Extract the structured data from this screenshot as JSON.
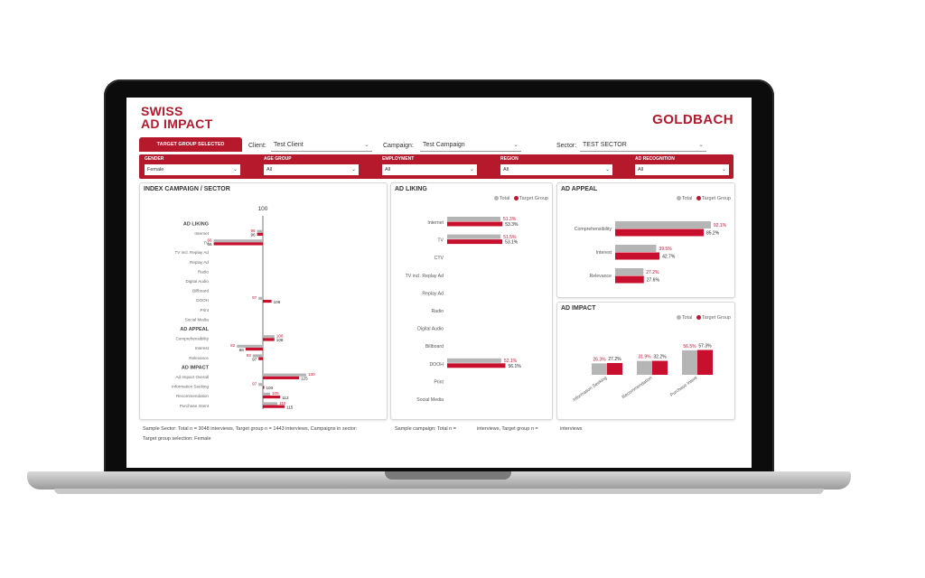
{
  "header": {
    "title_line1": "SWISS",
    "title_line2": "AD IMPACT",
    "brand": "GOLDBACH",
    "tab": "TARGET GROUP SELECTED"
  },
  "filters": {
    "client_label": "Client:",
    "client_value": "Test Client",
    "campaign_label": "Campaign:",
    "campaign_value": "Test Campaign",
    "sector_label": "Sector:",
    "sector_value": "TEST SECTOR"
  },
  "filterbar": [
    {
      "label": "GENDER",
      "value": "Female"
    },
    {
      "label": "AGE GROUP",
      "value": "All"
    },
    {
      "label": "EMPLOYMENT",
      "value": "All"
    },
    {
      "label": "REGION",
      "value": "All"
    },
    {
      "label": "AD RECOGNITION",
      "value": "All"
    }
  ],
  "colors": {
    "accent": "#b5192b",
    "total": "#b5b5b5",
    "target": "#c8102e"
  },
  "icons": [
    "chevron-down-icon"
  ],
  "legend": {
    "total": "Total",
    "target": "Target Group"
  },
  "index_card": {
    "title": "INDEX CAMPAIGN / SECTOR",
    "baseline_label": "100",
    "rows": [
      {
        "label": "AD LIKING",
        "header": true
      },
      {
        "label": "Internet",
        "total": 96,
        "target": 96
      },
      {
        "label": "TV",
        "total": 66,
        "target": 66
      },
      {
        "label": "TV incl. Replay Ad"
      },
      {
        "label": "Replay Ad"
      },
      {
        "label": "Radio"
      },
      {
        "label": "Digital Audio"
      },
      {
        "label": "Billboard"
      },
      {
        "label": "DOOH",
        "total": 97,
        "target": 106
      },
      {
        "label": "Print"
      },
      {
        "label": "Social Media"
      },
      {
        "label": "AD APPEAL",
        "header": true
      },
      {
        "label": "Comprehensibility",
        "total": 108,
        "target": 108
      },
      {
        "label": "Interest",
        "total": 82,
        "target": 88
      },
      {
        "label": "Relevance",
        "total": 93,
        "target": 97
      },
      {
        "label": "AD IMPACT",
        "header": true
      },
      {
        "label": "Ad Impact Overall",
        "total": 130,
        "target": 125
      },
      {
        "label": "Information Seeking",
        "total": 97,
        "target": 100
      },
      {
        "label": "Recommendation",
        "total": 105,
        "target": 112
      },
      {
        "label": "Purchase Intent",
        "total": 110,
        "target": 115
      }
    ]
  },
  "chart_data": [
    {
      "type": "bar",
      "title": "AD LIKING",
      "categories": [
        "Internet",
        "TV",
        "CTV",
        "TV incl. Replay Ad",
        "Replay Ad",
        "Radio",
        "Digital Audio",
        "Billboard",
        "DOOH",
        "Print",
        "Social Media"
      ],
      "series": [
        {
          "name": "Total",
          "values": [
            51.3,
            51.5,
            null,
            null,
            null,
            null,
            null,
            null,
            52.1,
            null,
            null
          ]
        },
        {
          "name": "Target Group",
          "values": [
            53.3,
            53.1,
            null,
            null,
            null,
            null,
            null,
            null,
            56.1,
            null,
            null
          ]
        }
      ],
      "value_labels": {
        "Total": [
          "51.3%",
          "51.5%",
          "",
          "",
          "",
          "",
          "",
          "",
          "52.1%",
          "",
          ""
        ],
        "Target Group": [
          "53.3%",
          "53.1%",
          "",
          "",
          "",
          "",
          "",
          "",
          "56.1%",
          "",
          ""
        ]
      }
    },
    {
      "type": "bar",
      "title": "AD APPEAL",
      "categories": [
        "Comprehensibility",
        "Interest",
        "Relevance"
      ],
      "series": [
        {
          "name": "Total",
          "values": [
            92.1,
            39.5,
            27.2
          ]
        },
        {
          "name": "Target Group",
          "values": [
            85.2,
            42.7,
            27.6
          ]
        }
      ],
      "value_labels": {
        "Total": [
          "92.1%",
          "39.5%",
          "27.2%"
        ],
        "Target Group": [
          "85.2%",
          "42.7%",
          "27.6%"
        ]
      }
    },
    {
      "type": "bar",
      "title": "AD IMPACT",
      "categories": [
        "Information Seeking",
        "Recommendation",
        "Purchase Intent"
      ],
      "series": [
        {
          "name": "Total",
          "values": [
            26.3,
            31.9,
            56.5
          ]
        },
        {
          "name": "Target Group",
          "values": [
            27.2,
            32.2,
            57.3
          ]
        }
      ],
      "value_labels": {
        "Total": [
          "26.3%",
          "31.9%",
          "56.5%"
        ],
        "Target Group": [
          "27.2%",
          "32.2%",
          "57.3%"
        ]
      }
    }
  ],
  "footer": {
    "left_line1": "Sample Sector: Total n = 3048 interviews, Target group n = 1443 interviews, Campaigns in sector:",
    "left_line2": "Target group selection: Female",
    "mid_a": "Sample campaign: Total n =",
    "mid_b": "interviews, Target group n =",
    "mid_c": "interviews"
  }
}
